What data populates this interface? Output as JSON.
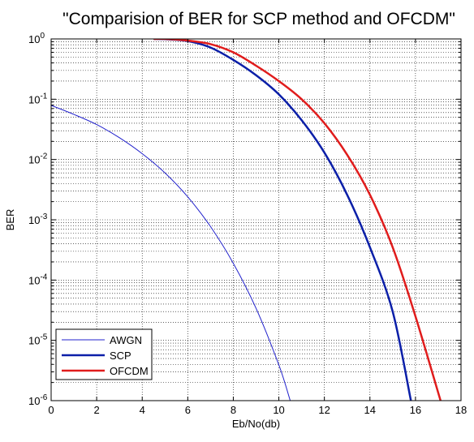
{
  "chart_data": {
    "type": "line",
    "title": "\"Comparision of BER for SCP method and OFCDM\"",
    "xlabel": "Eb/No(db)",
    "ylabel": "BER",
    "xlim": [
      0,
      18
    ],
    "ylim": [
      1e-06,
      1
    ],
    "yscale": "log",
    "grid": "dotted",
    "legend_position": "bottom-left",
    "x_ticks": [
      "0",
      "2",
      "4",
      "6",
      "8",
      "10",
      "12",
      "14",
      "16",
      "18"
    ],
    "y_ticks": [
      {
        "base": "10",
        "exp": "0"
      },
      {
        "base": "10",
        "exp": "-1"
      },
      {
        "base": "10",
        "exp": "-2"
      },
      {
        "base": "10",
        "exp": "-3"
      },
      {
        "base": "10",
        "exp": "-4"
      },
      {
        "base": "10",
        "exp": "-5"
      },
      {
        "base": "10",
        "exp": "-6"
      }
    ],
    "series": [
      {
        "name": "AWGN",
        "color": "#2222cc",
        "width": 1,
        "x": [
          0,
          1,
          2,
          3,
          4,
          5,
          6,
          7,
          8,
          9,
          10,
          10.5
        ],
        "y": [
          0.079,
          0.056,
          0.038,
          0.023,
          0.0125,
          0.006,
          0.0024,
          0.00077,
          0.00019,
          3.4e-05,
          3.9e-06,
          1e-06
        ]
      },
      {
        "name": "SCP",
        "color": "#0b1fa8",
        "width": 2.5,
        "x": [
          4.5,
          5,
          6,
          7,
          8,
          9,
          10,
          11,
          12,
          13,
          14,
          15,
          15.8
        ],
        "y": [
          1.0,
          0.99,
          0.92,
          0.72,
          0.45,
          0.25,
          0.12,
          0.045,
          0.013,
          0.0026,
          0.00035,
          3e-05,
          1e-06
        ]
      },
      {
        "name": "OFCDM",
        "color": "#e01c1c",
        "width": 2.5,
        "x": [
          4.5,
          5,
          6,
          7,
          8,
          9,
          10,
          11,
          12,
          13,
          14,
          15,
          16,
          17.1
        ],
        "y": [
          1.0,
          1.0,
          0.94,
          0.82,
          0.6,
          0.36,
          0.2,
          0.1,
          0.04,
          0.012,
          0.0026,
          0.00035,
          2.5e-05,
          1e-06
        ]
      }
    ]
  }
}
